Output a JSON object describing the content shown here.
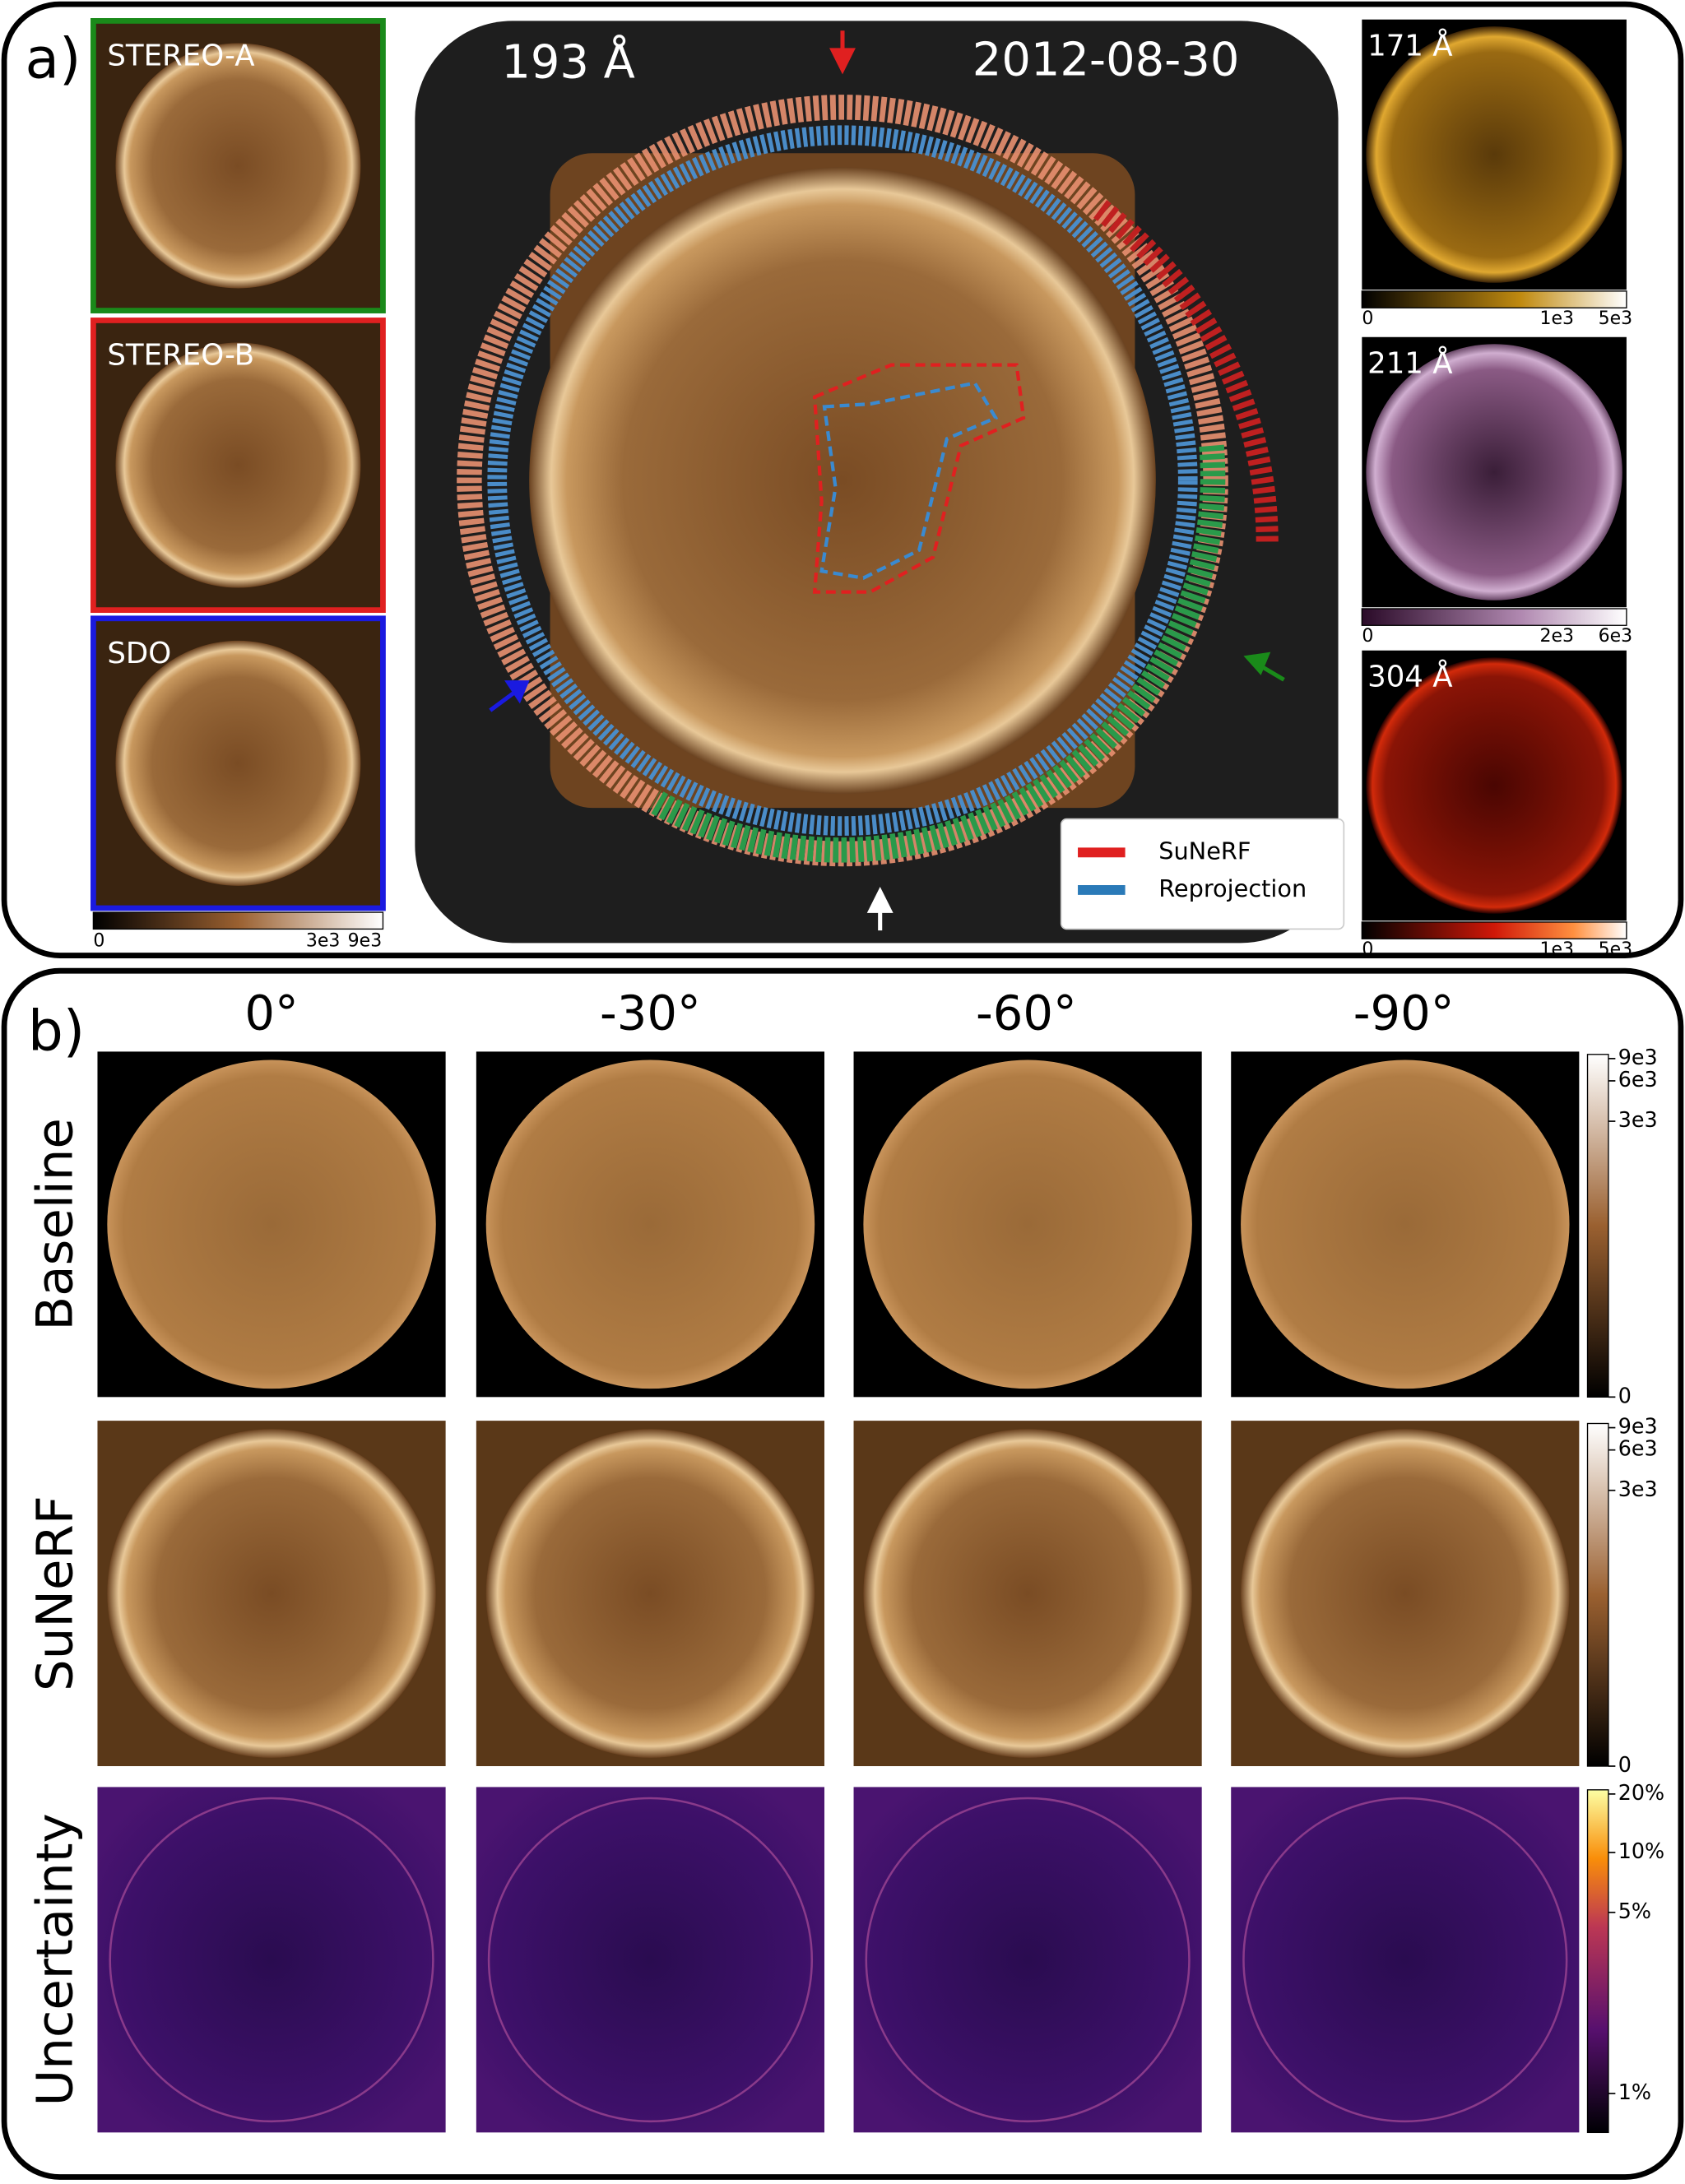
{
  "panel_a": {
    "label": "a)",
    "instruments": [
      {
        "label": "STEREO-A"
      },
      {
        "label": "STEREO-B"
      },
      {
        "label": "SDO"
      }
    ],
    "colorbar_ticks": [
      "0",
      "3e3",
      "9e3"
    ],
    "center": {
      "wavelength": "193 Å",
      "date": "2012-08-30",
      "legend": [
        "SuNeRF",
        "Reprojection"
      ]
    },
    "channels": [
      {
        "label": "171 Å",
        "colorbar_ticks": [
          "0",
          "1e3",
          "5e3"
        ]
      },
      {
        "label": "211 Å",
        "colorbar_ticks": [
          "0",
          "2e3",
          "6e3"
        ]
      },
      {
        "label": "304 Å",
        "colorbar_ticks": [
          "0",
          "1e3",
          "5e3"
        ]
      }
    ]
  },
  "panel_b": {
    "label": "b)",
    "columns": [
      "0°",
      "-30°",
      "-60°",
      "-90°"
    ],
    "rows": [
      {
        "label": "Baseline",
        "colorbar_ticks": [
          "9e3",
          "6e3",
          "3e3",
          "0"
        ]
      },
      {
        "label": "SuNeRF",
        "colorbar_ticks": [
          "9e3",
          "6e3",
          "3e3",
          "0"
        ]
      },
      {
        "label": "Uncertainty",
        "colorbar_ticks": [
          "20%",
          "10%",
          "5%",
          "1%"
        ]
      }
    ]
  }
}
